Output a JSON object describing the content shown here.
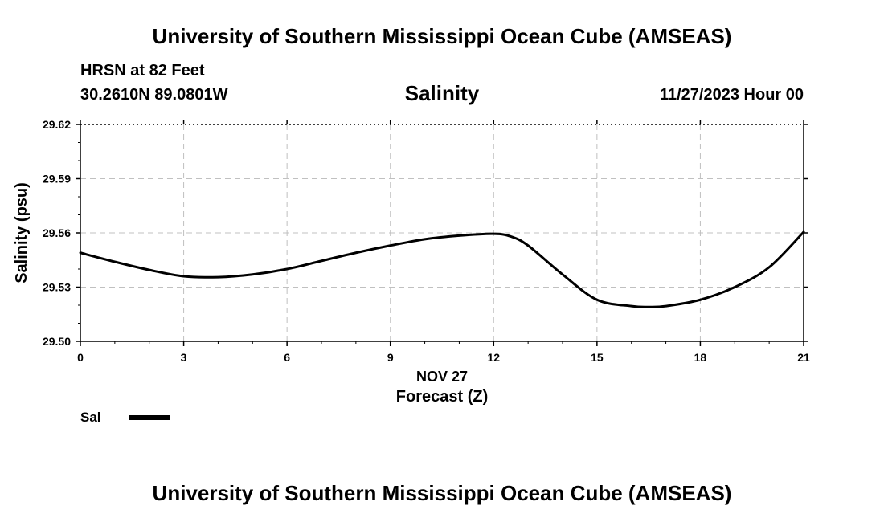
{
  "header": {
    "title": "University of Southern Mississippi Ocean Cube (AMSEAS)",
    "station": "HRSN at 82 Feet",
    "coordinates": "30.2610N  89.0801W",
    "chart_title": "Salinity",
    "datetime": "11/27/2023 Hour 00"
  },
  "footer": {
    "title": "University of Southern Mississippi Ocean Cube (AMSEAS)"
  },
  "chart_data": {
    "type": "line",
    "title": "Salinity",
    "xlabel": "Forecast (Z)",
    "x_date_label": "NOV 27",
    "ylabel": "Salinity (psu)",
    "xlim": [
      0,
      21
    ],
    "ylim": [
      29.5,
      29.62
    ],
    "x_ticks": [
      0,
      3,
      6,
      9,
      12,
      15,
      18,
      21
    ],
    "x_tick_labels": [
      "0",
      "3",
      "6",
      "9",
      "12",
      "15",
      "18",
      "21"
    ],
    "y_ticks": [
      29.5,
      29.53,
      29.56,
      29.59,
      29.62
    ],
    "y_tick_labels": [
      "29.50",
      "29.53",
      "29.56",
      "29.59",
      "29.62"
    ],
    "grid": true,
    "legend_position": "bottom-left",
    "series": [
      {
        "name": "Sal",
        "color": "#000000",
        "x": [
          0,
          1,
          2,
          3,
          4,
          5,
          6,
          7,
          8,
          9,
          10,
          11,
          12,
          12.5,
          13,
          14,
          15,
          16,
          16.5,
          17,
          18,
          19,
          20,
          21
        ],
        "values": [
          29.549,
          29.544,
          29.5395,
          29.536,
          29.5355,
          29.537,
          29.54,
          29.5445,
          29.549,
          29.553,
          29.5565,
          29.5585,
          29.5595,
          29.558,
          29.553,
          29.537,
          29.523,
          29.5195,
          29.519,
          29.5195,
          29.523,
          29.53,
          29.541,
          29.5605
        ]
      }
    ]
  }
}
